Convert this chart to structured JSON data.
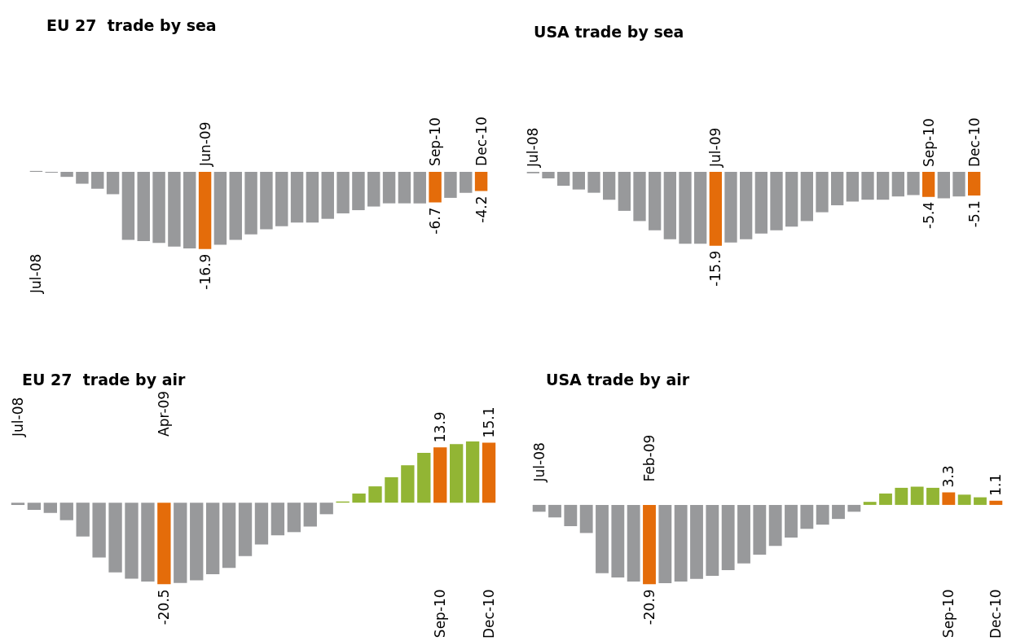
{
  "chart_data": [
    {
      "type": "bar",
      "title": "EU 27  trade by sea",
      "categories": [
        "Jul-08",
        null,
        null,
        null,
        null,
        null,
        null,
        null,
        null,
        null,
        null,
        "Jun-09",
        null,
        null,
        null,
        null,
        null,
        null,
        null,
        null,
        null,
        null,
        null,
        null,
        null,
        null,
        "Sep-10",
        null,
        null,
        "Dec-10"
      ],
      "values": [
        0.2,
        -0.2,
        -1.1,
        -2.6,
        -3.7,
        -4.9,
        -14.9,
        -15.2,
        -15.6,
        -16.4,
        -16.8,
        -16.9,
        -16.0,
        -14.9,
        -13.7,
        -12.6,
        -11.9,
        -11.1,
        -11.1,
        -10.3,
        -9.1,
        -8.4,
        -7.6,
        -6.9,
        -6.9,
        -6.9,
        -6.7,
        -5.7,
        -4.6,
        -4.2
      ],
      "colors": [
        "#98999b",
        "#98999b",
        "#98999b",
        "#98999b",
        "#98999b",
        "#98999b",
        "#98999b",
        "#98999b",
        "#98999b",
        "#98999b",
        "#98999b",
        "#e46c0a",
        "#98999b",
        "#98999b",
        "#98999b",
        "#98999b",
        "#98999b",
        "#98999b",
        "#98999b",
        "#98999b",
        "#98999b",
        "#98999b",
        "#98999b",
        "#98999b",
        "#98999b",
        "#98999b",
        "#e46c0a",
        "#98999b",
        "#98999b",
        "#e46c0a"
      ],
      "value_labels": [
        null,
        null,
        null,
        null,
        null,
        null,
        null,
        null,
        null,
        null,
        null,
        "-16.9",
        null,
        null,
        null,
        null,
        null,
        null,
        null,
        null,
        null,
        null,
        null,
        null,
        null,
        null,
        "-6.7",
        null,
        null,
        "-4.2"
      ]
    },
    {
      "type": "bar",
      "title": "USA trade by sea",
      "categories": [
        "Jul-08",
        null,
        null,
        null,
        null,
        null,
        null,
        null,
        null,
        null,
        null,
        null,
        "Jul-09",
        null,
        null,
        null,
        null,
        null,
        null,
        null,
        null,
        null,
        null,
        null,
        null,
        null,
        "Sep-10",
        null,
        null,
        "Dec-10"
      ],
      "values": [
        -0.3,
        -1.4,
        -3.0,
        -3.8,
        -4.5,
        -6.0,
        -8.4,
        -10.6,
        -12.6,
        -14.5,
        -15.5,
        -15.5,
        -15.9,
        -15.2,
        -14.5,
        -13.3,
        -12.6,
        -11.8,
        -10.6,
        -8.7,
        -7.2,
        -6.4,
        -6.0,
        -6.0,
        -5.3,
        -5.0,
        -5.4,
        -5.7,
        -5.3,
        -5.1
      ],
      "colors": [
        "#98999b",
        "#98999b",
        "#98999b",
        "#98999b",
        "#98999b",
        "#98999b",
        "#98999b",
        "#98999b",
        "#98999b",
        "#98999b",
        "#98999b",
        "#98999b",
        "#e46c0a",
        "#98999b",
        "#98999b",
        "#98999b",
        "#98999b",
        "#98999b",
        "#98999b",
        "#98999b",
        "#98999b",
        "#98999b",
        "#98999b",
        "#98999b",
        "#98999b",
        "#98999b",
        "#e46c0a",
        "#98999b",
        "#98999b",
        "#e46c0a"
      ],
      "value_labels": [
        null,
        null,
        null,
        null,
        null,
        null,
        null,
        null,
        null,
        null,
        null,
        null,
        "-15.9",
        null,
        null,
        null,
        null,
        null,
        null,
        null,
        null,
        null,
        null,
        null,
        null,
        null,
        "-5.4",
        null,
        null,
        "-5.1"
      ]
    },
    {
      "type": "bar",
      "title": "EU 27  trade by air",
      "categories": [
        "Jul-08",
        null,
        null,
        null,
        null,
        null,
        null,
        null,
        null,
        "Apr-09",
        null,
        null,
        null,
        null,
        null,
        null,
        null,
        null,
        null,
        null,
        null,
        null,
        null,
        null,
        null,
        null,
        "Sep-10",
        null,
        null,
        "Dec-10"
      ],
      "values": [
        -0.6,
        -1.8,
        -2.6,
        -4.4,
        -8.5,
        -13.8,
        -17.5,
        -19.1,
        -19.8,
        -20.5,
        -20.2,
        -19.5,
        -18.0,
        -16.4,
        -13.4,
        -10.5,
        -8.2,
        -7.4,
        -6.0,
        -2.9,
        0.3,
        2.3,
        4.1,
        6.4,
        9.4,
        12.5,
        13.9,
        14.7,
        15.4,
        15.1
      ],
      "colors": [
        "#98999b",
        "#98999b",
        "#98999b",
        "#98999b",
        "#98999b",
        "#98999b",
        "#98999b",
        "#98999b",
        "#98999b",
        "#e46c0a",
        "#98999b",
        "#98999b",
        "#98999b",
        "#98999b",
        "#98999b",
        "#98999b",
        "#98999b",
        "#98999b",
        "#98999b",
        "#98999b",
        "#92b534",
        "#92b534",
        "#92b534",
        "#92b534",
        "#92b534",
        "#92b534",
        "#e46c0a",
        "#92b534",
        "#92b534",
        "#e46c0a"
      ],
      "value_labels": [
        null,
        null,
        null,
        null,
        null,
        null,
        null,
        null,
        null,
        "-20.5",
        null,
        null,
        null,
        null,
        null,
        null,
        null,
        null,
        null,
        null,
        null,
        null,
        null,
        null,
        null,
        null,
        "13.9",
        null,
        null,
        "15.1"
      ]
    },
    {
      "type": "bar",
      "title": "USA trade by air",
      "categories": [
        "Jul-08",
        null,
        null,
        null,
        null,
        null,
        null,
        "Feb-09",
        null,
        null,
        null,
        null,
        null,
        null,
        null,
        null,
        null,
        null,
        null,
        null,
        null,
        null,
        null,
        null,
        null,
        null,
        "Sep-10",
        null,
        null,
        "Dec-10"
      ],
      "values": [
        -1.8,
        -3.3,
        -5.6,
        -7.4,
        -18.0,
        -19.1,
        -20.2,
        -20.9,
        -20.6,
        -20.2,
        -19.5,
        -18.7,
        -17.2,
        -15.4,
        -13.1,
        -10.8,
        -8.6,
        -6.3,
        -5.2,
        -3.7,
        -1.8,
        0.8,
        3.0,
        4.5,
        4.8,
        4.5,
        3.3,
        2.7,
        2.0,
        1.1
      ],
      "colors": [
        "#98999b",
        "#98999b",
        "#98999b",
        "#98999b",
        "#98999b",
        "#98999b",
        "#98999b",
        "#e46c0a",
        "#98999b",
        "#98999b",
        "#98999b",
        "#98999b",
        "#98999b",
        "#98999b",
        "#98999b",
        "#98999b",
        "#98999b",
        "#98999b",
        "#98999b",
        "#98999b",
        "#98999b",
        "#92b534",
        "#92b534",
        "#92b534",
        "#92b534",
        "#92b534",
        "#e46c0a",
        "#92b534",
        "#92b534",
        "#e46c0a"
      ],
      "value_labels": [
        null,
        null,
        null,
        null,
        null,
        null,
        null,
        "-20.9",
        null,
        null,
        null,
        null,
        null,
        null,
        null,
        null,
        null,
        null,
        null,
        null,
        null,
        null,
        null,
        null,
        null,
        null,
        "3.3",
        null,
        null,
        "1.1"
      ]
    }
  ]
}
